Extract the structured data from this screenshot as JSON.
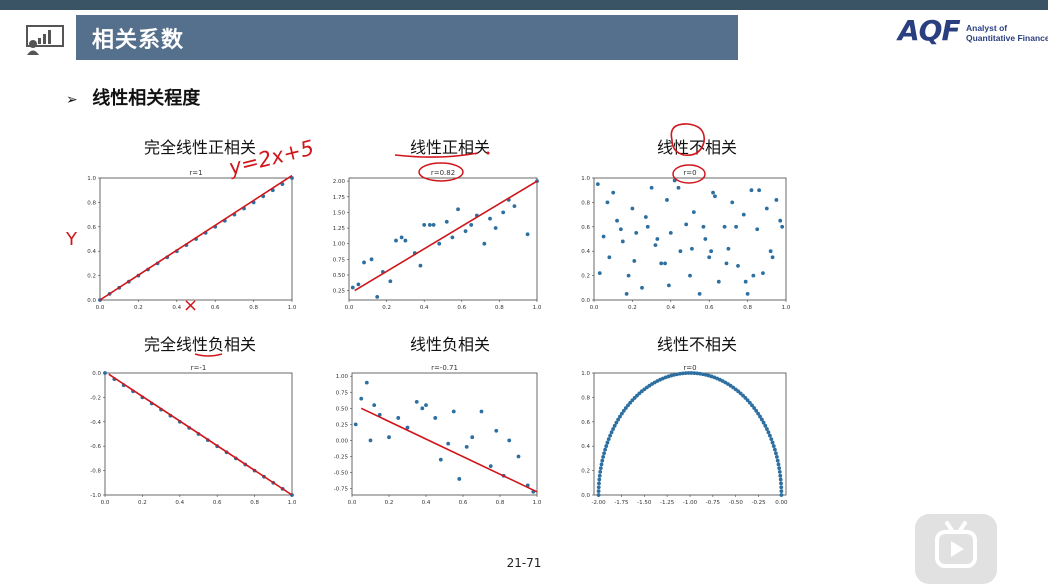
{
  "header": {
    "title": "相关系数",
    "logo_mark": "AQF",
    "logo_line1": "Analyst of",
    "logo_line2": "Quantitative Finance"
  },
  "section": {
    "heading": "线性相关程度"
  },
  "annotations": {
    "equation": "y=2x+5",
    "y_mark": "Y",
    "x_mark": "×"
  },
  "footer": {
    "page": "21-71"
  },
  "colors": {
    "point": "#2c6fa0",
    "fit_line": "#d0161b",
    "title_bar": "#55708c",
    "top_bar": "#3b5465"
  },
  "chart_data": [
    {
      "type": "scatter",
      "subtitle": "完全线性正相关",
      "title": "r=1",
      "xlim": [
        0,
        1
      ],
      "ylim": [
        0,
        1
      ],
      "xticks": [
        "0.0",
        "0.2",
        "0.4",
        "0.6",
        "0.8",
        "1.0"
      ],
      "yticks": [
        "0.0",
        "0.2",
        "0.4",
        "0.6",
        "0.8",
        "1.0"
      ],
      "x": [
        0.0,
        0.05,
        0.1,
        0.15,
        0.2,
        0.25,
        0.3,
        0.35,
        0.4,
        0.45,
        0.5,
        0.55,
        0.6,
        0.65,
        0.7,
        0.75,
        0.8,
        0.85,
        0.9,
        0.95,
        1.0
      ],
      "y": [
        0.0,
        0.05,
        0.1,
        0.15,
        0.2,
        0.25,
        0.3,
        0.35,
        0.4,
        0.45,
        0.5,
        0.55,
        0.6,
        0.65,
        0.7,
        0.75,
        0.8,
        0.85,
        0.9,
        0.95,
        1.0
      ],
      "fit": [
        [
          0.0,
          0.0
        ],
        [
          1.0,
          1.02
        ]
      ]
    },
    {
      "type": "scatter",
      "subtitle": "线性正相关",
      "title": "r=0.82",
      "xlim": [
        0,
        1
      ],
      "ylim": [
        0.1,
        2.05
      ],
      "xticks": [
        "0.0",
        "0.2",
        "0.4",
        "0.6",
        "0.8",
        "1.0"
      ],
      "yticks": [
        "0.25",
        "0.50",
        "0.75",
        "1.00",
        "1.25",
        "1.50",
        "1.75",
        "2.00"
      ],
      "x": [
        0.02,
        0.05,
        0.08,
        0.12,
        0.15,
        0.18,
        0.22,
        0.25,
        0.28,
        0.3,
        0.35,
        0.38,
        0.4,
        0.43,
        0.45,
        0.48,
        0.52,
        0.55,
        0.58,
        0.62,
        0.65,
        0.68,
        0.72,
        0.75,
        0.78,
        0.82,
        0.85,
        0.88,
        0.95,
        1.0
      ],
      "y": [
        0.3,
        0.35,
        0.7,
        0.75,
        0.15,
        0.55,
        0.4,
        1.05,
        1.1,
        1.05,
        0.85,
        0.65,
        1.3,
        1.3,
        1.3,
        1.0,
        1.35,
        1.1,
        1.55,
        1.2,
        1.3,
        1.45,
        1.0,
        1.4,
        1.25,
        1.5,
        1.7,
        1.6,
        1.15,
        2.0
      ],
      "fit": [
        [
          0.03,
          0.25
        ],
        [
          1.0,
          2.0
        ]
      ]
    },
    {
      "type": "scatter",
      "subtitle": "线性不相关",
      "title": "r=0",
      "xlim": [
        0,
        1
      ],
      "ylim": [
        0,
        1
      ],
      "xticks": [
        "0.0",
        "0.2",
        "0.4",
        "0.6",
        "0.8",
        "1.0"
      ],
      "yticks": [
        "0.0",
        "0.2",
        "0.4",
        "0.6",
        "0.8",
        "1.0"
      ],
      "x": [
        0.02,
        0.05,
        0.08,
        0.1,
        0.12,
        0.15,
        0.18,
        0.2,
        0.22,
        0.25,
        0.28,
        0.3,
        0.32,
        0.35,
        0.38,
        0.4,
        0.42,
        0.45,
        0.48,
        0.5,
        0.52,
        0.55,
        0.58,
        0.6,
        0.62,
        0.65,
        0.68,
        0.7,
        0.72,
        0.75,
        0.78,
        0.8,
        0.82,
        0.85,
        0.88,
        0.9,
        0.92,
        0.95,
        0.98,
        0.03,
        0.07,
        0.14,
        0.21,
        0.27,
        0.33,
        0.39,
        0.44,
        0.51,
        0.57,
        0.63,
        0.69,
        0.74,
        0.79,
        0.86,
        0.93,
        0.97,
        0.17,
        0.37,
        0.61,
        0.83
      ],
      "y": [
        0.95,
        0.52,
        0.35,
        0.88,
        0.65,
        0.48,
        0.2,
        0.75,
        0.55,
        0.1,
        0.6,
        0.92,
        0.45,
        0.3,
        0.82,
        0.55,
        0.98,
        0.4,
        0.62,
        0.2,
        0.72,
        0.05,
        0.5,
        0.35,
        0.88,
        0.15,
        0.6,
        0.42,
        0.8,
        0.28,
        0.7,
        0.05,
        0.9,
        0.58,
        0.22,
        0.75,
        0.4,
        0.82,
        0.6,
        0.22,
        0.8,
        0.58,
        0.32,
        0.68,
        0.5,
        0.12,
        0.92,
        0.42,
        0.6,
        0.85,
        0.3,
        0.6,
        0.15,
        0.9,
        0.35,
        0.65,
        0.05,
        0.3,
        0.4,
        0.2
      ],
      "fit": []
    },
    {
      "type": "scatter",
      "subtitle": "完全线性负相关",
      "title": "r=-1",
      "xlim": [
        0,
        1
      ],
      "ylim": [
        -1,
        0
      ],
      "xticks": [
        "0.0",
        "0.2",
        "0.4",
        "0.6",
        "0.8",
        "1.0"
      ],
      "yticks": [
        "0.0",
        "-0.2",
        "-0.4",
        "-0.6",
        "-0.8",
        "-1.0"
      ],
      "x": [
        0.0,
        0.05,
        0.1,
        0.15,
        0.2,
        0.25,
        0.3,
        0.35,
        0.4,
        0.45,
        0.5,
        0.55,
        0.6,
        0.65,
        0.7,
        0.75,
        0.8,
        0.85,
        0.9,
        0.95,
        1.0
      ],
      "y": [
        0.0,
        -0.05,
        -0.1,
        -0.15,
        -0.2,
        -0.25,
        -0.3,
        -0.35,
        -0.4,
        -0.45,
        -0.5,
        -0.55,
        -0.6,
        -0.65,
        -0.7,
        -0.75,
        -0.8,
        -0.85,
        -0.9,
        -0.95,
        -1.0
      ],
      "fit": [
        [
          0.02,
          -0.01
        ],
        [
          1.0,
          -1.0
        ]
      ]
    },
    {
      "type": "scatter",
      "subtitle": "线性负相关",
      "title": "r=-0.71",
      "xlim": [
        0,
        1
      ],
      "ylim": [
        -0.85,
        1.05
      ],
      "xticks": [
        "0.0",
        "0.2",
        "0.4",
        "0.6",
        "0.8",
        "1.0"
      ],
      "yticks": [
        "1.00",
        "0.75",
        "0.50",
        "0.25",
        "0.00",
        "-0.25",
        "-0.50",
        "-0.75"
      ],
      "x": [
        0.02,
        0.05,
        0.08,
        0.1,
        0.12,
        0.15,
        0.2,
        0.25,
        0.3,
        0.35,
        0.38,
        0.4,
        0.45,
        0.48,
        0.52,
        0.55,
        0.58,
        0.62,
        0.65,
        0.7,
        0.75,
        0.78,
        0.82,
        0.85,
        0.9,
        0.95,
        0.98
      ],
      "y": [
        0.25,
        0.65,
        0.9,
        0.0,
        0.55,
        0.4,
        0.05,
        0.35,
        0.2,
        0.6,
        0.5,
        0.55,
        0.35,
        -0.3,
        -0.05,
        0.45,
        -0.6,
        -0.1,
        0.05,
        0.45,
        -0.4,
        0.15,
        -0.55,
        0.0,
        -0.25,
        -0.7,
        -0.8
      ],
      "fit": [
        [
          0.05,
          0.5
        ],
        [
          1.0,
          -0.8
        ]
      ]
    },
    {
      "type": "scatter",
      "subtitle": "线性不相关",
      "title": "r=0",
      "xlim": [
        -2.05,
        0.05
      ],
      "ylim": [
        0,
        1
      ],
      "xticks": [
        "-2.00",
        "-1.75",
        "-1.50",
        "-1.25",
        "-1.00",
        "-0.75",
        "-0.50",
        "-0.25",
        "0.00"
      ],
      "yticks": [
        "0.0",
        "0.2",
        "0.4",
        "0.6",
        "0.8",
        "1.0"
      ],
      "semicircle": {
        "center": -1.0,
        "radius": 1.0,
        "points": 100
      },
      "fit": []
    }
  ]
}
